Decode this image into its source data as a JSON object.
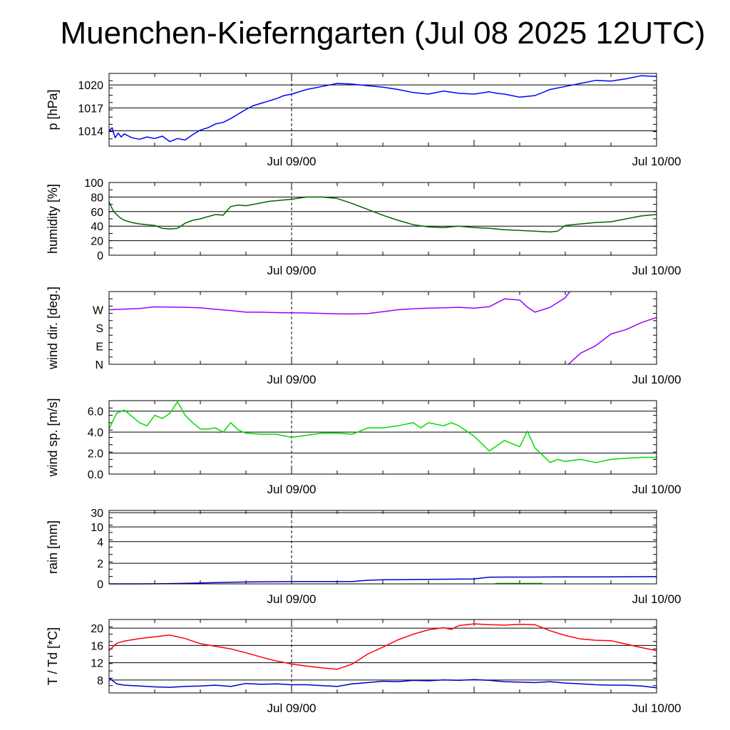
{
  "title": "Muenchen-Kieferngarten (Jul 08 2025 12UTC)",
  "chart_data": [
    {
      "type": "line",
      "ylabel": "p [hPa]",
      "ylim": [
        1012,
        1021.5
      ],
      "yticks": [
        "1014",
        "1017",
        "1020"
      ],
      "ytick_values": [
        1014,
        1017,
        1020
      ],
      "xlabels": [
        "Jul 09/00",
        "Jul 10/00"
      ],
      "x_hours": [
        0,
        12,
        36
      ],
      "grid": "horizontal",
      "color": "#0000ff",
      "series": [
        {
          "x": [
            0,
            0.2,
            0.4,
            0.6,
            0.8,
            1,
            1.5,
            2,
            2.5,
            3,
            3.5,
            4,
            4.5,
            5,
            5.5,
            6,
            6.5,
            7,
            7.5,
            8,
            8.5,
            9,
            9.5,
            10,
            10.5,
            11,
            11.5,
            12,
            13,
            14,
            15,
            16,
            17,
            18,
            19,
            20,
            21,
            22,
            23,
            24,
            25,
            25.5,
            26,
            27,
            28,
            29,
            30,
            31,
            32,
            33,
            34,
            35,
            36
          ],
          "values": [
            1014.0,
            1014.4,
            1013.1,
            1013.7,
            1013.2,
            1013.6,
            1013.1,
            1012.9,
            1013.2,
            1013.0,
            1013.3,
            1012.6,
            1013.0,
            1012.8,
            1013.5,
            1014.1,
            1014.4,
            1014.9,
            1015.1,
            1015.6,
            1016.2,
            1016.8,
            1017.3,
            1017.6,
            1017.9,
            1018.2,
            1018.6,
            1018.8,
            1019.4,
            1019.8,
            1020.2,
            1020.1,
            1019.9,
            1019.7,
            1019.4,
            1019.0,
            1018.8,
            1019.2,
            1018.9,
            1018.8,
            1019.1,
            1018.9,
            1018.8,
            1018.4,
            1018.6,
            1019.4,
            1019.8,
            1020.2,
            1020.6,
            1020.5,
            1020.8,
            1021.2,
            1021.1
          ]
        }
      ]
    },
    {
      "type": "line",
      "ylabel": "humidity [%]",
      "ylim": [
        0,
        100
      ],
      "yticks": [
        "0",
        "20",
        "40",
        "60",
        "80",
        "100"
      ],
      "ytick_values": [
        0,
        20,
        40,
        60,
        80,
        100
      ],
      "xlabels": [
        "Jul 09/00",
        "Jul 10/00"
      ],
      "grid": "horizontal",
      "color": "#006600",
      "series": [
        {
          "x": [
            0,
            0.3,
            0.7,
            1,
            1.5,
            2,
            2.5,
            3,
            3.5,
            4,
            4.5,
            5,
            5.5,
            6,
            6.5,
            7,
            7.5,
            8,
            8.5,
            9,
            9.5,
            10,
            10.5,
            11,
            11.5,
            12,
            13,
            14,
            15,
            16,
            17,
            18,
            19,
            20,
            21,
            22,
            23,
            24,
            25,
            26,
            27,
            28,
            29,
            29.5,
            30,
            31,
            32,
            33,
            34,
            35,
            36
          ],
          "values": [
            73,
            60,
            52,
            48,
            45,
            43,
            42,
            41,
            37,
            36,
            37,
            44,
            48,
            50,
            53,
            56,
            55,
            67,
            69,
            68,
            70,
            72,
            74,
            75,
            76,
            77,
            80,
            80,
            78,
            71,
            63,
            55,
            48,
            42,
            39,
            38,
            40,
            38,
            37,
            35,
            34,
            33,
            32,
            33,
            41,
            43,
            45,
            46,
            50,
            54,
            56
          ]
        }
      ]
    },
    {
      "type": "line",
      "ylabel": "wind dir. [deg.]",
      "ylim": [
        0,
        360
      ],
      "yticks": [
        "N",
        "E",
        "S",
        "W"
      ],
      "ytick_values": [
        0,
        90,
        180,
        270
      ],
      "xlabels": [
        "Jul 09/00",
        "Jul 10/00"
      ],
      "grid": "none",
      "color": "#9900ff",
      "series": [
        {
          "x": [
            0,
            1,
            2,
            3,
            4,
            5,
            6,
            7,
            8,
            9,
            10,
            11,
            12,
            13,
            14,
            15,
            16,
            17,
            18,
            19,
            20,
            21,
            22,
            23,
            24,
            25,
            26,
            27,
            27.5,
            28,
            29,
            30,
            30.3
          ],
          "values": [
            270,
            273,
            276,
            284,
            283,
            282,
            280,
            272,
            266,
            258,
            258,
            256,
            255,
            254,
            252,
            250,
            249,
            251,
            260,
            270,
            275,
            278,
            280,
            282,
            278,
            285,
            324,
            318,
            283,
            258,
            282,
            330,
            360
          ]
        },
        {
          "x": [
            30.2,
            31,
            32,
            33,
            34,
            35,
            36
          ],
          "values": [
            0,
            55,
            92,
            150,
            172,
            206,
            232
          ]
        }
      ]
    },
    {
      "type": "line",
      "ylabel": "wind sp. [m/s]",
      "ylim": [
        0,
        7
      ],
      "yticks": [
        "0.0",
        "2.0",
        "4.0",
        "6.0"
      ],
      "ytick_values": [
        0,
        2,
        4,
        6
      ],
      "xlabels": [
        "Jul 09/00",
        "Jul 10/00"
      ],
      "grid": "horizontal",
      "color": "#00dd00",
      "series": [
        {
          "x": [
            0,
            0.5,
            1,
            1.5,
            2,
            2.5,
            3,
            3.5,
            4,
            4.5,
            5,
            5.5,
            6,
            6.5,
            7,
            7.5,
            8,
            8.5,
            9,
            10,
            11,
            12,
            13,
            14,
            15,
            16,
            17,
            18,
            19,
            20,
            20.5,
            21,
            22,
            22.5,
            23,
            24,
            25,
            26,
            27,
            27.5,
            28,
            29,
            29.5,
            30,
            31,
            32,
            33,
            34,
            35,
            36
          ],
          "values": [
            4.3,
            5.8,
            6.1,
            5.5,
            4.9,
            4.6,
            5.6,
            5.3,
            5.8,
            6.9,
            5.6,
            4.9,
            4.3,
            4.3,
            4.4,
            4.0,
            4.9,
            4.2,
            3.9,
            3.8,
            3.8,
            3.5,
            3.7,
            3.9,
            3.9,
            3.8,
            4.4,
            4.4,
            4.6,
            4.9,
            4.4,
            4.9,
            4.6,
            4.9,
            4.6,
            3.6,
            2.2,
            3.2,
            2.6,
            4.1,
            2.5,
            1.1,
            1.4,
            1.2,
            1.4,
            1.1,
            1.4,
            1.5,
            1.6,
            1.6
          ]
        }
      ]
    },
    {
      "type": "line",
      "ylabel": "rain [mm]",
      "ylim": [
        0,
        30
      ],
      "yticks": [
        "0",
        "2",
        "4",
        "10",
        "30"
      ],
      "ytick_values": [
        0,
        2,
        4,
        10,
        30
      ],
      "y_scale": "nonlinear",
      "xlabels": [
        "Jul 09/00",
        "Jul 10/00"
      ],
      "grid": "horizontal",
      "colors": [
        "#0000cc",
        "#00cc00"
      ],
      "series": [
        {
          "x": [
            0,
            1,
            2,
            3,
            4,
            5,
            6,
            7,
            8,
            9,
            10,
            11,
            12,
            14,
            16,
            17,
            18,
            20,
            22,
            24,
            25,
            26,
            28,
            30,
            32,
            36
          ],
          "values": [
            0,
            0,
            0,
            0.01,
            0.03,
            0.05,
            0.08,
            0.12,
            0.15,
            0.18,
            0.2,
            0.21,
            0.22,
            0.22,
            0.23,
            0.35,
            0.4,
            0.42,
            0.45,
            0.48,
            0.65,
            0.66,
            0.66,
            0.68,
            0.68,
            0.7
          ]
        },
        {
          "x": [
            25.4,
            28.5
          ],
          "values": [
            0.04,
            0.04
          ]
        }
      ]
    },
    {
      "type": "line",
      "ylabel": "T / Td [*C]",
      "ylim": [
        5,
        22
      ],
      "yticks": [
        "8",
        "12",
        "16",
        "20"
      ],
      "ytick_values": [
        8,
        12,
        16,
        20
      ],
      "xlabels": [
        "Jul 09/00",
        "Jul 10/00"
      ],
      "grid": "horizontal",
      "colors": [
        "#ff0000",
        "#0000cc"
      ],
      "series": [
        {
          "x": [
            0,
            0.5,
            1,
            2,
            3,
            4,
            5,
            5.5,
            6,
            7,
            8,
            9,
            10,
            11,
            12,
            13,
            14,
            15,
            16,
            17,
            18,
            19,
            20,
            21,
            22,
            22.5,
            23,
            24,
            25,
            26,
            27,
            28,
            29,
            30,
            31,
            32,
            33,
            34,
            35,
            36
          ],
          "values": [
            14.8,
            16.5,
            17.0,
            17.6,
            18.0,
            18.4,
            17.6,
            17.0,
            16.4,
            15.8,
            15.2,
            14.3,
            13.3,
            12.4,
            11.7,
            11.2,
            10.8,
            10.5,
            11.7,
            14.0,
            15.6,
            17.3,
            18.6,
            19.6,
            20.1,
            19.7,
            20.6,
            21.0,
            20.8,
            20.7,
            20.9,
            20.8,
            19.4,
            18.3,
            17.5,
            17.2,
            17.1,
            16.3,
            15.5,
            14.8
          ]
        },
        {
          "x": [
            0,
            0.5,
            1,
            2,
            3,
            4,
            5,
            6,
            7,
            8,
            9,
            10,
            11,
            12,
            13,
            14,
            15,
            16,
            17,
            18,
            19,
            20,
            21,
            22,
            23,
            24,
            25,
            26,
            27,
            28,
            29,
            30,
            31,
            32,
            33,
            34,
            35,
            36
          ],
          "values": [
            8.5,
            7.1,
            6.8,
            6.6,
            6.4,
            6.3,
            6.5,
            6.6,
            6.8,
            6.5,
            7.2,
            7.0,
            7.1,
            6.9,
            6.9,
            6.7,
            6.5,
            7.1,
            7.4,
            7.7,
            7.6,
            7.9,
            7.8,
            8.0,
            7.9,
            8.1,
            7.9,
            7.6,
            7.5,
            7.4,
            7.6,
            7.3,
            7.1,
            6.9,
            6.8,
            6.8,
            6.6,
            6.2
          ]
        }
      ]
    }
  ]
}
